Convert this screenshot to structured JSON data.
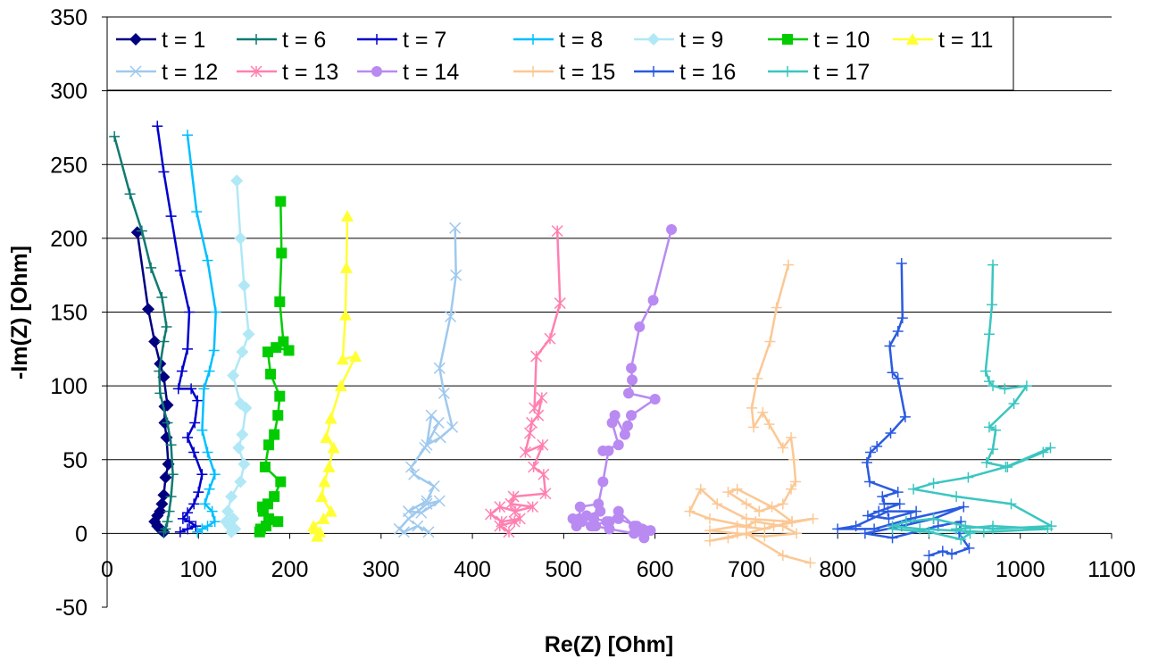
{
  "chart_data": {
    "type": "scatter",
    "title": "",
    "xlabel": "Re(Z) [Ohm]",
    "ylabel": "-Im(Z) [Ohm]",
    "xlim": [
      0,
      1100
    ],
    "ylim": [
      -50,
      350
    ],
    "xticks": [
      "0",
      "100",
      "200",
      "300",
      "400",
      "500",
      "600",
      "700",
      "800",
      "900",
      "1000",
      "1100"
    ],
    "yticks": [
      "-50",
      "0",
      "50",
      "100",
      "150",
      "200",
      "250",
      "300",
      "350"
    ],
    "grid": "horizontal",
    "legend_position": "top",
    "series": [
      {
        "name": "t = 1",
        "color": "#000080",
        "marker": "diamond",
        "x": [
          33,
          45,
          52,
          58,
          62,
          66,
          63,
          63,
          65,
          67,
          64,
          62,
          60,
          58,
          55,
          52,
          55,
          58,
          60,
          62
        ],
        "y": [
          204,
          152,
          130,
          115,
          106,
          87,
          86,
          75,
          65,
          47,
          38,
          26,
          20,
          15,
          12,
          8,
          5,
          3,
          2,
          1
        ]
      },
      {
        "name": "t = 6",
        "color": "#0f7a72",
        "marker": "plus",
        "x": [
          8,
          25,
          38,
          48,
          60,
          65,
          62,
          57,
          58,
          66,
          70,
          72,
          70,
          68,
          66,
          64,
          62
        ],
        "y": [
          269,
          230,
          205,
          180,
          160,
          140,
          130,
          110,
          95,
          75,
          60,
          40,
          25,
          15,
          8,
          3,
          1
        ]
      },
      {
        "name": "t = 7",
        "color": "#0000cd",
        "marker": "plus",
        "x": [
          55,
          62,
          70,
          80,
          90,
          88,
          82,
          78,
          92,
          99,
          96,
          88,
          95,
          104,
          100,
          95,
          88,
          83,
          90,
          97,
          88,
          80
        ],
        "y": [
          276,
          245,
          215,
          178,
          150,
          125,
          110,
          98,
          98,
          90,
          75,
          65,
          55,
          40,
          28,
          20,
          14,
          10,
          8,
          5,
          3,
          1
        ]
      },
      {
        "name": "t = 8",
        "color": "#00bfff",
        "marker": "plus",
        "x": [
          88,
          98,
          110,
          119,
          117,
          112,
          106,
          104,
          110,
          118,
          112,
          107,
          115,
          118,
          110,
          104,
          99
        ],
        "y": [
          270,
          218,
          185,
          150,
          124,
          110,
          98,
          70,
          55,
          40,
          30,
          20,
          15,
          8,
          5,
          3,
          1
        ]
      },
      {
        "name": "t = 9",
        "color": "#b0e8f6",
        "marker": "diamond",
        "x": [
          142,
          146,
          150,
          155,
          148,
          138,
          146,
          152,
          148,
          144,
          150,
          146,
          136,
          132,
          138,
          130,
          134,
          140,
          136
        ],
        "y": [
          239,
          200,
          168,
          135,
          123,
          107,
          88,
          85,
          67,
          58,
          47,
          35,
          25,
          15,
          10,
          8,
          5,
          3,
          1
        ]
      },
      {
        "name": "t = 10",
        "color": "#00cc00",
        "marker": "square",
        "x": [
          190,
          191,
          189,
          193,
          199,
          185,
          176,
          179,
          189,
          187,
          183,
          177,
          173,
          190,
          183,
          176,
          170,
          171,
          177,
          187,
          174,
          168,
          167
        ],
        "y": [
          225,
          190,
          157,
          130,
          124,
          126,
          123,
          108,
          93,
          80,
          67,
          60,
          45,
          35,
          25,
          20,
          18,
          15,
          10,
          8,
          5,
          3,
          1
        ]
      },
      {
        "name": "t = 11",
        "color": "#ffff33",
        "marker": "triangle",
        "x": [
          263,
          262,
          261,
          258,
          272,
          256,
          245,
          240,
          248,
          243,
          238,
          235,
          245,
          237,
          226,
          228,
          233,
          230
        ],
        "y": [
          215,
          180,
          148,
          118,
          120,
          100,
          78,
          65,
          58,
          45,
          35,
          25,
          15,
          10,
          5,
          3,
          1,
          -2
        ]
      },
      {
        "name": "t = 12",
        "color": "#9fc9ee",
        "marker": "x",
        "x": [
          381,
          382,
          376,
          364,
          369,
          378,
          365,
          350,
          355,
          363,
          348,
          333,
          336,
          358,
          350,
          330,
          344,
          364,
          350,
          330,
          320,
          325,
          340,
          352
        ],
        "y": [
          207,
          175,
          147,
          112,
          95,
          72,
          65,
          60,
          80,
          75,
          58,
          45,
          40,
          32,
          22,
          15,
          14,
          22,
          20,
          10,
          3,
          1,
          5,
          1
        ]
      },
      {
        "name": "t = 13",
        "color": "#ff80b0",
        "marker": "asterisk",
        "x": [
          493,
          496,
          485,
          470,
          468,
          476,
          472,
          465,
          463,
          458,
          477,
          467,
          478,
          480,
          445,
          442,
          466,
          447,
          430,
          420,
          432,
          452,
          446,
          430,
          440
        ],
        "y": [
          205,
          156,
          132,
          120,
          85,
          92,
          80,
          75,
          68,
          55,
          60,
          45,
          40,
          27,
          25,
          20,
          18,
          15,
          18,
          13,
          8,
          10,
          8,
          5,
          1
        ]
      },
      {
        "name": "t = 14",
        "color": "#b98af1",
        "marker": "circle",
        "x": [
          618,
          598,
          583,
          574,
          575,
          571,
          600,
          574,
          570,
          567,
          556,
          553,
          560,
          543,
          549,
          543,
          538,
          518,
          517,
          540,
          525,
          533,
          550,
          560,
          577,
          586,
          589,
          587,
          577,
          550,
          535,
          532,
          510,
          514,
          520,
          530,
          547,
          560,
          580,
          595,
          588
        ],
        "y": [
          206,
          158,
          140,
          112,
          104,
          95,
          91,
          80,
          73,
          67,
          80,
          75,
          60,
          56,
          56,
          35,
          20,
          18,
          10,
          15,
          12,
          10,
          8,
          15,
          5,
          3,
          2,
          0,
          0,
          3,
          5,
          5,
          10,
          5,
          8,
          5,
          8,
          10,
          5,
          2,
          -3
        ]
      },
      {
        "name": "t = 15",
        "color": "#fbc895",
        "marker": "plus",
        "x": [
          746,
          733,
          726,
          712,
          706,
          708,
          718,
          725,
          740,
          749,
          752,
          754,
          749,
          740,
          714,
          700,
          680,
          690,
          728,
          750,
          700,
          668,
          650,
          638,
          660,
          700,
          710,
          740,
          755,
          720,
          690,
          660,
          690,
          720,
          750,
          773,
          730,
          700,
          680,
          660,
          700,
          740,
          770
        ],
        "y": [
          182,
          153,
          130,
          105,
          85,
          72,
          82,
          74,
          58,
          65,
          50,
          35,
          30,
          20,
          15,
          20,
          28,
          30,
          18,
          8,
          10,
          20,
          30,
          15,
          10,
          5,
          8,
          5,
          0,
          -2,
          0,
          2,
          5,
          3,
          8,
          10,
          5,
          0,
          -3,
          -5,
          0,
          -15,
          -20
        ]
      },
      {
        "name": "t = 16",
        "color": "#2a5be0",
        "marker": "plus",
        "x": [
          870,
          871,
          866,
          857,
          860,
          866,
          874,
          858,
          843,
          836,
          832,
          835,
          866,
          849,
          851,
          868,
          845,
          833,
          856,
          886,
          855,
          820,
          800,
          840,
          880,
          938,
          905,
          870,
          830,
          860,
          910,
          935,
          933,
          944,
          925,
          915,
          900
        ],
        "y": [
          183,
          146,
          137,
          127,
          109,
          105,
          79,
          68,
          59,
          55,
          48,
          35,
          28,
          25,
          20,
          20,
          15,
          12,
          10,
          15,
          15,
          5,
          3,
          3,
          10,
          18,
          10,
          5,
          0,
          -3,
          5,
          8,
          0,
          -10,
          -14,
          -12,
          -15
        ]
      },
      {
        "name": "t = 17",
        "color": "#3bc6c0",
        "marker": "plus",
        "x": [
          970,
          969,
          966,
          962,
          966,
          970,
          983,
          1007,
          993,
          966,
          973,
          970,
          963,
          986,
          1025,
          1033,
          984,
          943,
          905,
          883,
          930,
          990,
          1034,
          970,
          940,
          905,
          875,
          860,
          890,
          960,
          1030,
          970,
          930,
          945,
          935,
          900,
          860
        ],
        "y": [
          182,
          155,
          135,
          110,
          103,
          100,
          98,
          100,
          88,
          72,
          70,
          57,
          48,
          45,
          55,
          58,
          45,
          38,
          34,
          30,
          25,
          20,
          5,
          3,
          5,
          10,
          8,
          5,
          3,
          1,
          3,
          5,
          3,
          0,
          -4,
          1,
          3
        ]
      }
    ]
  }
}
